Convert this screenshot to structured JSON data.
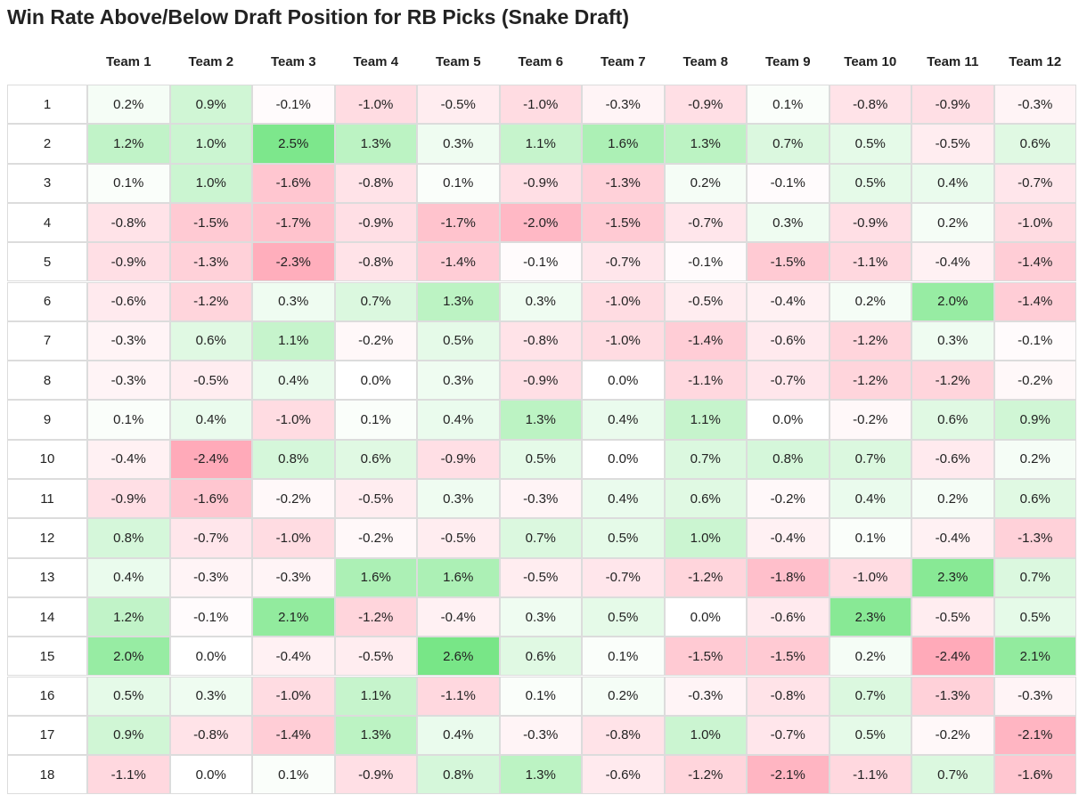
{
  "title": "Win Rate Above/Below Draft Position for RB Picks (Snake Draft)",
  "table": {
    "header": [
      "Team 1",
      "Team 2",
      "Team 3",
      "Team 4",
      "Team 5",
      "Team 6",
      "Team 7",
      "Team 8",
      "Team 9",
      "Team 10",
      "Team 11",
      "Team 12"
    ],
    "rows": [
      {
        "label": "1",
        "cells": [
          "0.2%",
          "0.9%",
          "-0.1%",
          "-1.0%",
          "-0.5%",
          "-1.0%",
          "-0.3%",
          "-0.9%",
          "0.1%",
          "-0.8%",
          "-0.9%",
          "-0.3%"
        ]
      },
      {
        "label": "2",
        "cells": [
          "1.2%",
          "1.0%",
          "2.5%",
          "1.3%",
          "0.3%",
          "1.1%",
          "1.6%",
          "1.3%",
          "0.7%",
          "0.5%",
          "-0.5%",
          "0.6%"
        ]
      },
      {
        "label": "3",
        "cells": [
          "0.1%",
          "1.0%",
          "-1.6%",
          "-0.8%",
          "0.1%",
          "-0.9%",
          "-1.3%",
          "0.2%",
          "-0.1%",
          "0.5%",
          "0.4%",
          "-0.7%"
        ]
      },
      {
        "label": "4",
        "cells": [
          "-0.8%",
          "-1.5%",
          "-1.7%",
          "-0.9%",
          "-1.7%",
          "-2.0%",
          "-1.5%",
          "-0.7%",
          "0.3%",
          "-0.9%",
          "0.2%",
          "-1.0%"
        ]
      },
      {
        "label": "5",
        "cells": [
          "-0.9%",
          "-1.3%",
          "-2.3%",
          "-0.8%",
          "-1.4%",
          "-0.1%",
          "-0.7%",
          "-0.1%",
          "-1.5%",
          "-1.1%",
          "-0.4%",
          "-1.4%"
        ]
      },
      {
        "label": "6",
        "cells": [
          "-0.6%",
          "-1.2%",
          "0.3%",
          "0.7%",
          "1.3%",
          "0.3%",
          "-1.0%",
          "-0.5%",
          "-0.4%",
          "0.2%",
          "2.0%",
          "-1.4%"
        ]
      },
      {
        "label": "7",
        "cells": [
          "-0.3%",
          "0.6%",
          "1.1%",
          "-0.2%",
          "0.5%",
          "-0.8%",
          "-1.0%",
          "-1.4%",
          "-0.6%",
          "-1.2%",
          "0.3%",
          "-0.1%"
        ]
      },
      {
        "label": "8",
        "cells": [
          "-0.3%",
          "-0.5%",
          "0.4%",
          "0.0%",
          "0.3%",
          "-0.9%",
          "0.0%",
          "-1.1%",
          "-0.7%",
          "-1.2%",
          "-1.2%",
          "-0.2%"
        ]
      },
      {
        "label": "9",
        "cells": [
          "0.1%",
          "0.4%",
          "-1.0%",
          "0.1%",
          "0.4%",
          "1.3%",
          "0.4%",
          "1.1%",
          "0.0%",
          "-0.2%",
          "0.6%",
          "0.9%"
        ]
      },
      {
        "label": "10",
        "cells": [
          "-0.4%",
          "-2.4%",
          "0.8%",
          "0.6%",
          "-0.9%",
          "0.5%",
          "0.0%",
          "0.7%",
          "0.8%",
          "0.7%",
          "-0.6%",
          "0.2%"
        ]
      },
      {
        "label": "11",
        "cells": [
          "-0.9%",
          "-1.6%",
          "-0.2%",
          "-0.5%",
          "0.3%",
          "-0.3%",
          "0.4%",
          "0.6%",
          "-0.2%",
          "0.4%",
          "0.2%",
          "0.6%"
        ]
      },
      {
        "label": "12",
        "cells": [
          "0.8%",
          "-0.7%",
          "-1.0%",
          "-0.2%",
          "-0.5%",
          "0.7%",
          "0.5%",
          "1.0%",
          "-0.4%",
          "0.1%",
          "-0.4%",
          "-1.3%"
        ]
      },
      {
        "label": "13",
        "cells": [
          "0.4%",
          "-0.3%",
          "-0.3%",
          "1.6%",
          "1.6%",
          "-0.5%",
          "-0.7%",
          "-1.2%",
          "-1.8%",
          "-1.0%",
          "2.3%",
          "0.7%"
        ]
      },
      {
        "label": "14",
        "cells": [
          "1.2%",
          "-0.1%",
          "2.1%",
          "-1.2%",
          "-0.4%",
          "0.3%",
          "0.5%",
          "0.0%",
          "-0.6%",
          "2.3%",
          "-0.5%",
          "0.5%"
        ]
      },
      {
        "label": "15",
        "cells": [
          "2.0%",
          "0.0%",
          "-0.4%",
          "-0.5%",
          "2.6%",
          "0.6%",
          "0.1%",
          "-1.5%",
          "-1.5%",
          "0.2%",
          "-2.4%",
          "2.1%"
        ]
      },
      {
        "label": "16",
        "cells": [
          "0.5%",
          "0.3%",
          "-1.0%",
          "1.1%",
          "-1.1%",
          "0.1%",
          "0.2%",
          "-0.3%",
          "-0.8%",
          "0.7%",
          "-1.3%",
          "-0.3%"
        ]
      },
      {
        "label": "17",
        "cells": [
          "0.9%",
          "-0.8%",
          "-1.4%",
          "1.3%",
          "0.4%",
          "-0.3%",
          "-0.8%",
          "1.0%",
          "-0.7%",
          "0.5%",
          "-0.2%",
          "-2.1%"
        ]
      },
      {
        "label": "18",
        "cells": [
          "-1.1%",
          "0.0%",
          "0.1%",
          "-0.9%",
          "0.8%",
          "1.3%",
          "-0.6%",
          "-1.2%",
          "-2.1%",
          "-1.1%",
          "0.7%",
          "-1.6%"
        ]
      }
    ]
  }
}
